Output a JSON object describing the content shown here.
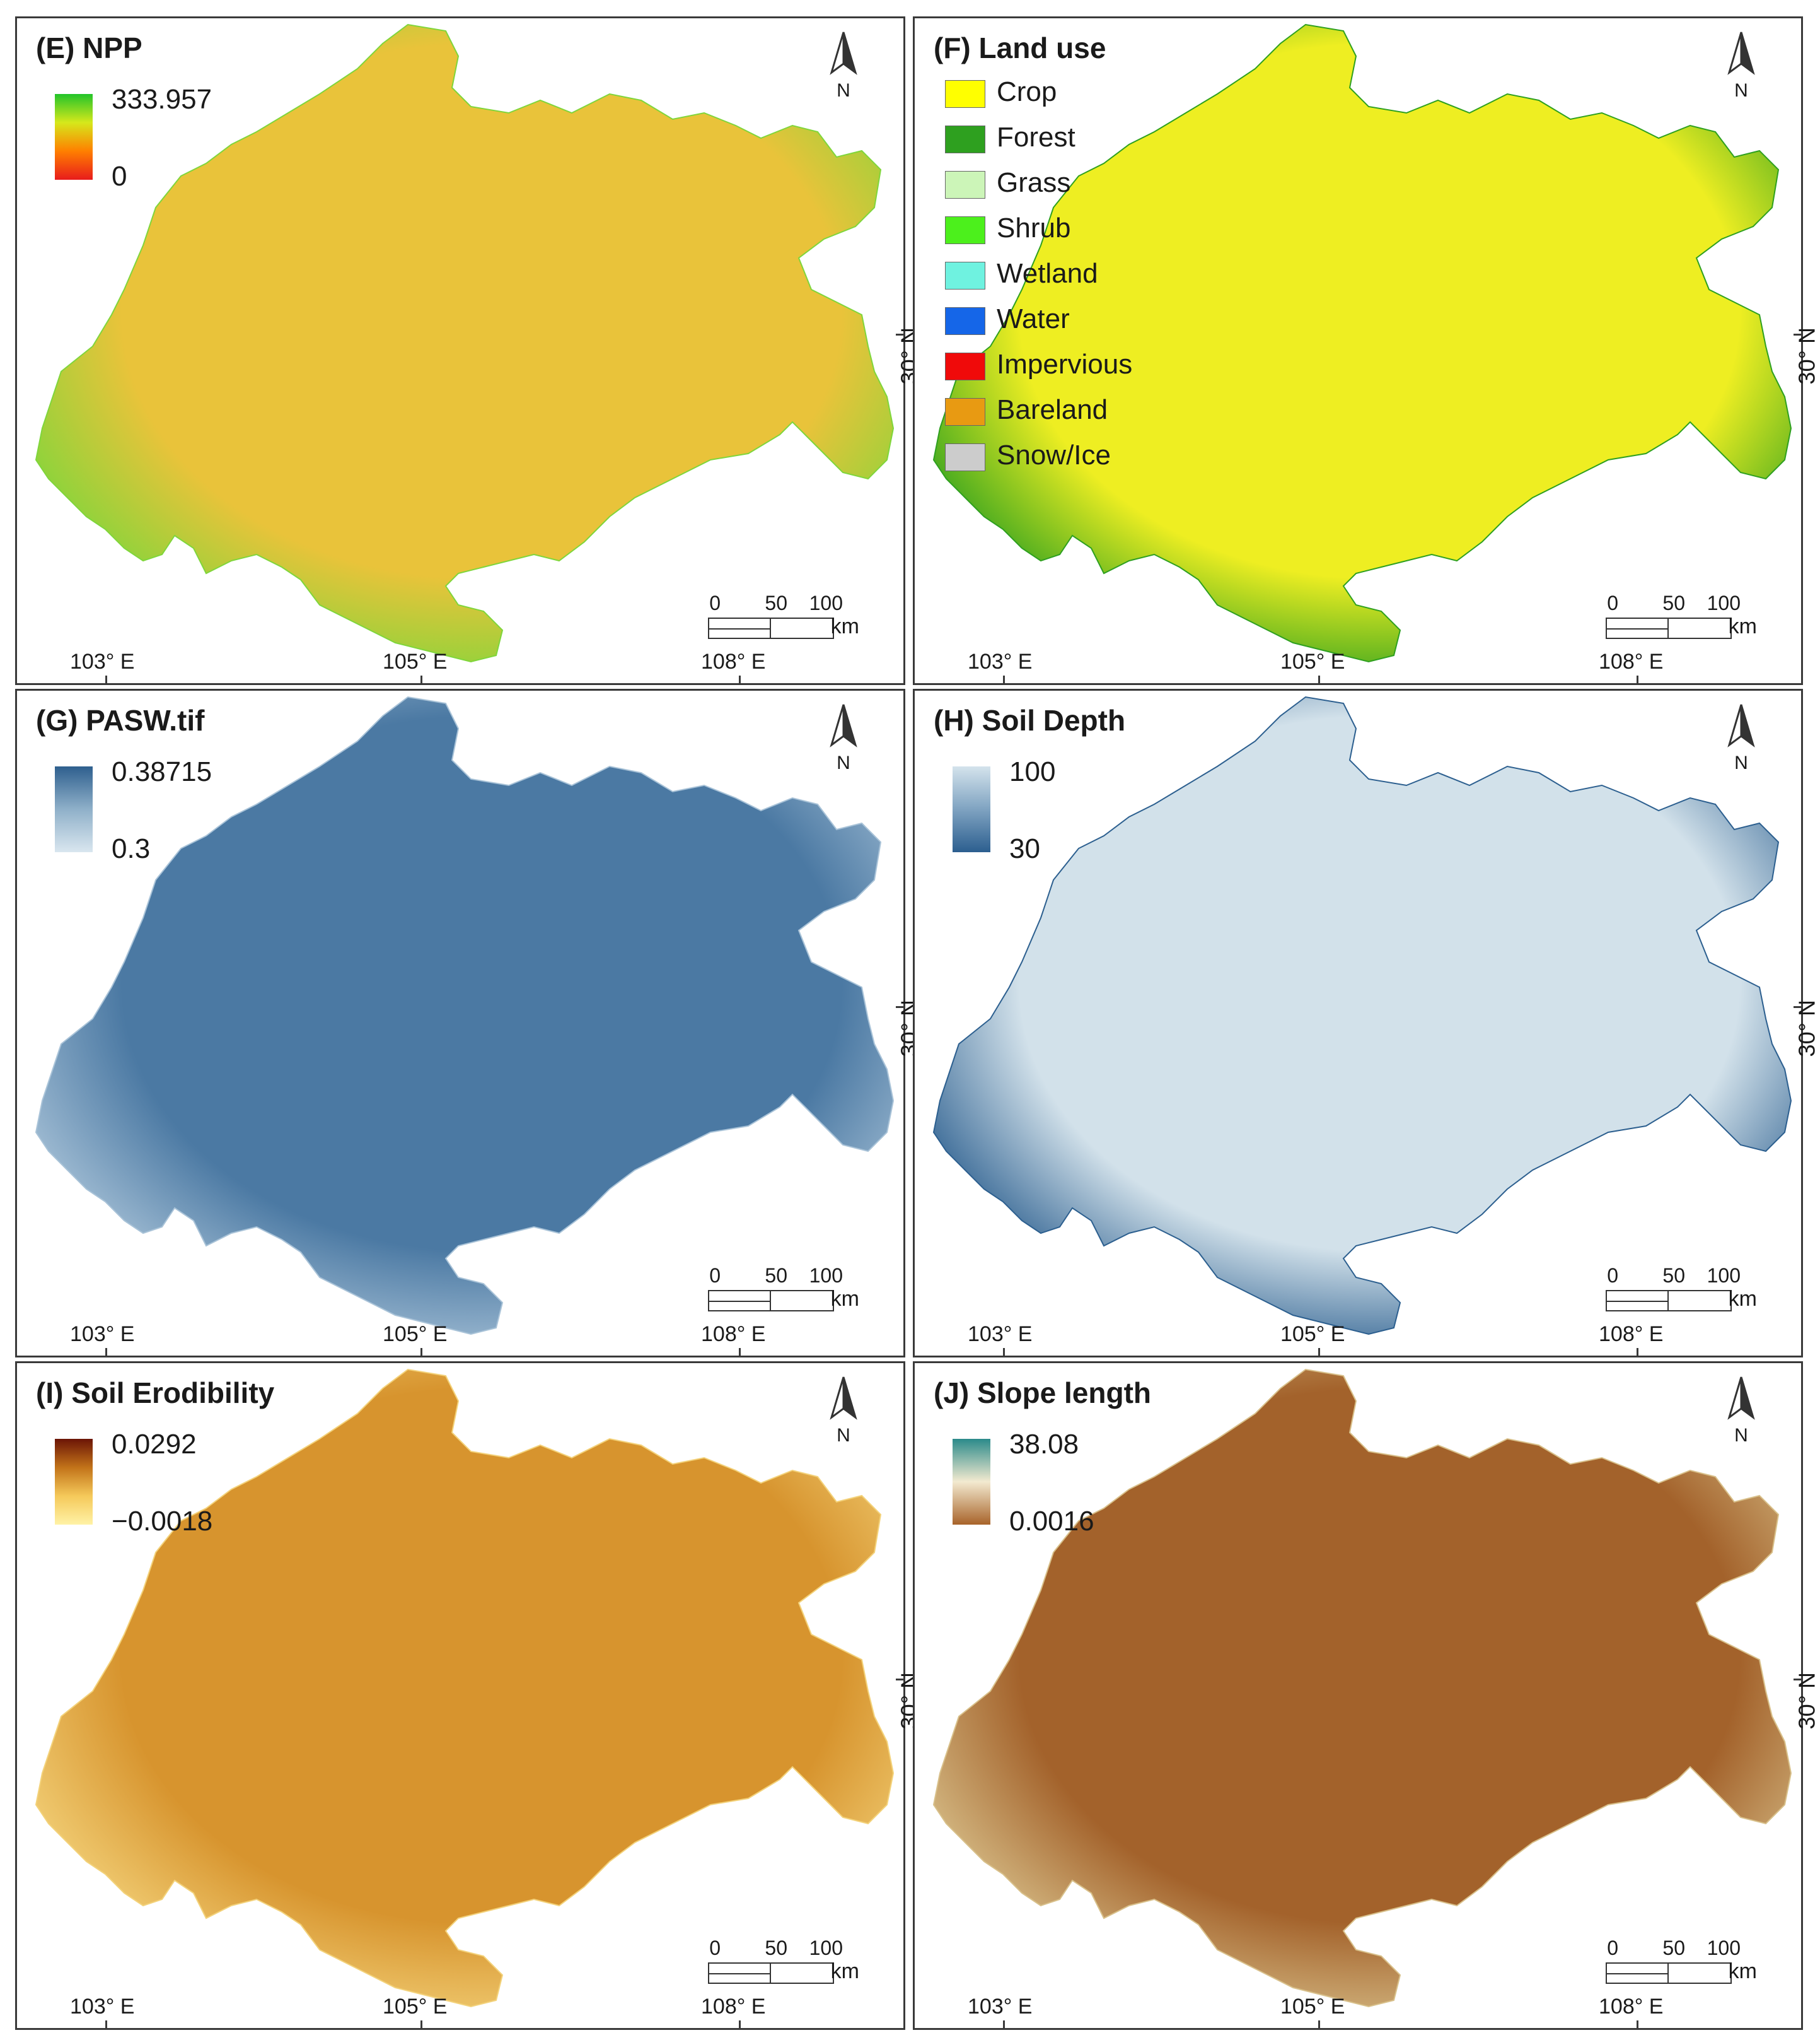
{
  "panels": [
    {
      "id": "E",
      "title": "(E) NPP",
      "legend_type": "ramp",
      "legend_max": "333.957",
      "legend_min": "0",
      "ramp_colors": [
        "#22c42a",
        "#d6e81b",
        "#ff7f00",
        "#e81c1c"
      ],
      "map_fill": "#e9c33a",
      "map_edge": "#7fd63b"
    },
    {
      "id": "F",
      "title": "(F) Land use",
      "legend_type": "categories",
      "classes": [
        {
          "label": "Crop",
          "color": "#ffff00"
        },
        {
          "label": "Forest",
          "color": "#2ea01f"
        },
        {
          "label": "Grass",
          "color": "#ccf5b8"
        },
        {
          "label": "Shrub",
          "color": "#4cf01c"
        },
        {
          "label": "Wetland",
          "color": "#6ff2e0"
        },
        {
          "label": "Water",
          "color": "#1566e8"
        },
        {
          "label": "Impervious",
          "color": "#f00a0a"
        },
        {
          "label": "Bareland",
          "color": "#e89a12"
        },
        {
          "label": "Snow/Ice",
          "color": "#cccccc"
        }
      ],
      "map_fill": "#eeee22",
      "map_edge": "#2ea01f"
    },
    {
      "id": "G",
      "title": "(G) PASW.tif",
      "legend_type": "ramp",
      "legend_max": "0.38715",
      "legend_min": "0.3",
      "ramp_colors": [
        "#2e5f8e",
        "#8fb0c9",
        "#d9e6ef"
      ],
      "map_fill": "#4b79a3",
      "map_edge": "#a9c3d8"
    },
    {
      "id": "H",
      "title": "(H) Soil Depth",
      "legend_type": "ramp",
      "legend_max": "100",
      "legend_min": "30",
      "ramp_colors": [
        "#d4e3ec",
        "#7fa3c1",
        "#2c5f8f"
      ],
      "map_fill": "#d2e1ea",
      "map_edge": "#2c5f8f"
    },
    {
      "id": "I",
      "title": "(I) Soil Erodibility",
      "legend_type": "ramp",
      "legend_max": "0.0292",
      "legend_min": "−0.0018",
      "ramp_colors": [
        "#6b1406",
        "#c27319",
        "#f5c95a",
        "#fff2a6"
      ],
      "map_fill": "#d7942e",
      "map_edge": "#f3d27a"
    },
    {
      "id": "J",
      "title": "(J) Slope length",
      "legend_type": "ramp",
      "legend_max": "38.08",
      "legend_min": "0.0016",
      "ramp_colors": [
        "#2b8a8a",
        "#f3ead0",
        "#a8632a"
      ],
      "map_fill": "#a3622b",
      "map_edge": "#d8c08a"
    }
  ],
  "axes": {
    "lon_labels": [
      "103° E",
      "105° E",
      "108° E"
    ],
    "lat_label": "30° N"
  },
  "scale_bar": {
    "ticks": [
      "0",
      "50",
      "100"
    ],
    "unit": "km"
  },
  "north_arrow": {
    "label": "N"
  }
}
